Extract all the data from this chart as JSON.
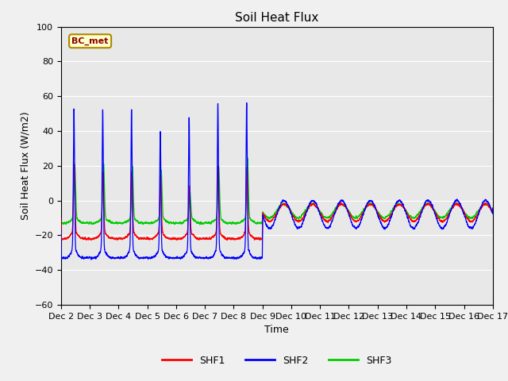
{
  "title": "Soil Heat Flux",
  "ylabel": "Soil Heat Flux (W/m2)",
  "xlabel": "Time",
  "ylim": [
    -60,
    100
  ],
  "annotation_text": "BC_met",
  "legend_labels": [
    "SHF1",
    "SHF2",
    "SHF3"
  ],
  "legend_colors": [
    "#ff0000",
    "#0000ff",
    "#00cc00"
  ],
  "plot_bg_color": "#e8e8e8",
  "fig_bg_color": "#f0f0f0",
  "title_fontsize": 11,
  "label_fontsize": 9,
  "tick_fontsize": 8,
  "yticks": [
    -60,
    -40,
    -20,
    0,
    20,
    40,
    60,
    80,
    100
  ],
  "xtick_positions": [
    2,
    3,
    4,
    5,
    6,
    7,
    8,
    9,
    10,
    11,
    12,
    13,
    14,
    15,
    16,
    17
  ],
  "xtick_labels": [
    "Dec 2",
    "Dec 3",
    "Dec 4",
    "Dec 5",
    "Dec 6",
    "Dec 7",
    "Dec 8",
    "Dec 9",
    "Dec 10",
    "Dec 11",
    "Dec 12",
    "Dec 13",
    "Dec 14",
    "Dec 15",
    "Dec 16",
    "Dec 17"
  ],
  "x_start": 2,
  "x_end": 17,
  "spike_cutoff": 9.0,
  "n_points": 7500
}
